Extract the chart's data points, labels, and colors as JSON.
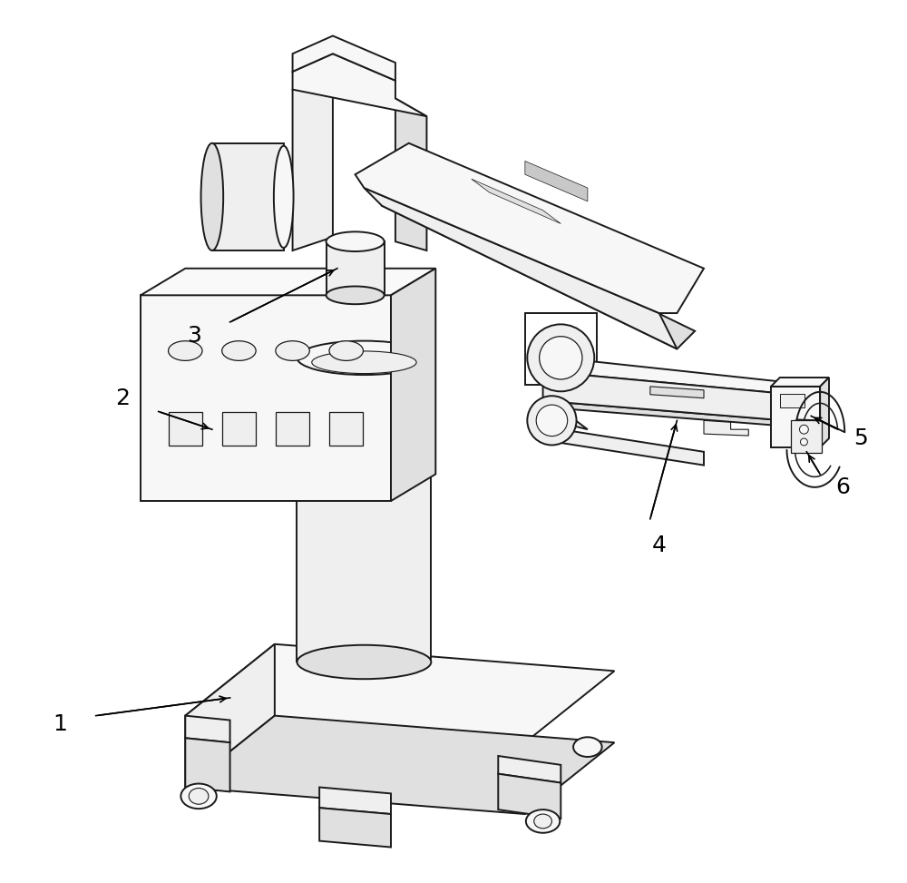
{
  "bg_color": "#ffffff",
  "lc": "#1a1a1a",
  "lw": 1.4,
  "fc_light": "#f7f7f7",
  "fc_mid": "#efefef",
  "fc_dark": "#e0e0e0",
  "figsize": [
    10.0,
    9.73
  ],
  "dpi": 100
}
